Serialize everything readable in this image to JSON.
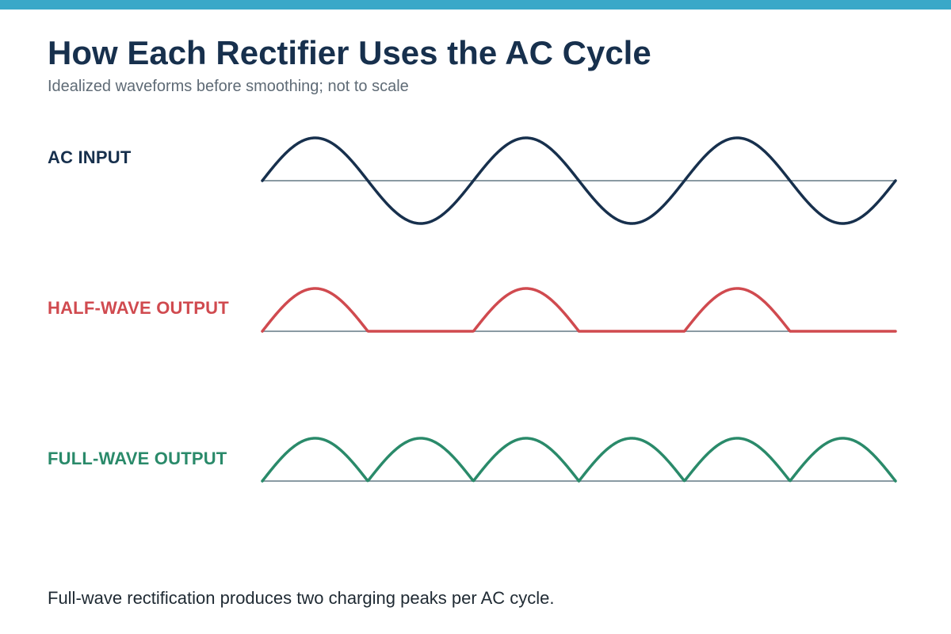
{
  "title": "How Each Rectifier Uses the AC Cycle",
  "subtitle": "Idealized waveforms before smoothing; not to scale",
  "colors": {
    "top_bar": "#3aa8c8",
    "baseline": "#8a9aa3",
    "ac": "#17304d",
    "half": "#d04a4f",
    "full": "#2a8a6a"
  },
  "rows": [
    {
      "id": "ac",
      "label": "AC INPUT",
      "kind": "sine",
      "cycles": 3
    },
    {
      "id": "half",
      "label": "HALF-WAVE OUTPUT",
      "kind": "half-wave",
      "cycles": 3
    },
    {
      "id": "full",
      "label": "FULL-WAVE OUTPUT",
      "kind": "full-wave",
      "cycles": 3
    }
  ],
  "footer": "Full-wave rectification produces two charging peaks per AC cycle."
}
